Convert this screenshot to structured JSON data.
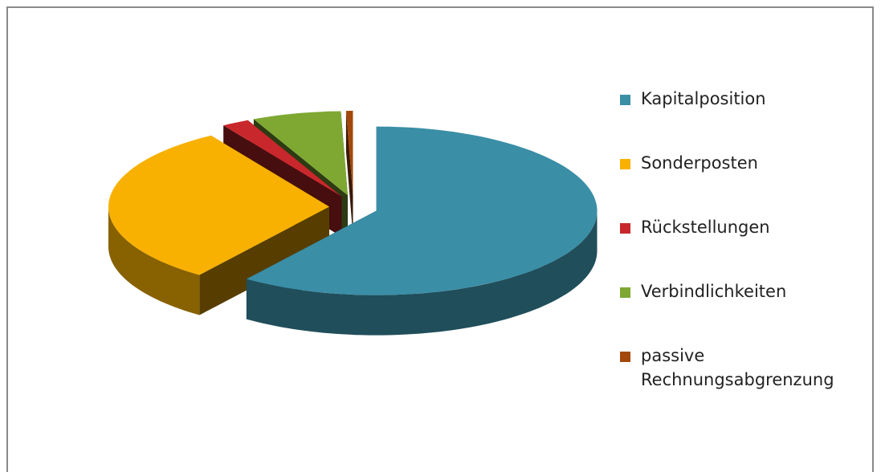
{
  "chart_data": {
    "type": "pie",
    "categories": [
      "Kapitalposition",
      "Sonderposten",
      "Rückstellungen",
      "Verbindlichkeiten",
      "passive Rechnungsabgrenzung"
    ],
    "values": [
      60,
      31,
      2,
      6.5,
      0.5
    ],
    "colors": [
      "#3a8ea6",
      "#f8b100",
      "#c8282c",
      "#7ea832",
      "#a3480c"
    ],
    "legend": "right"
  }
}
